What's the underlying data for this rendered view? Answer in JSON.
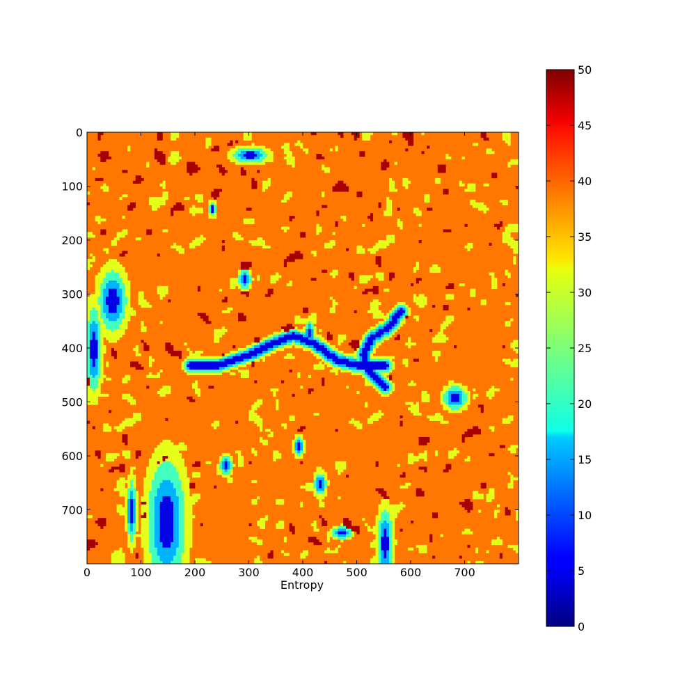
{
  "chart_data": {
    "type": "heatmap",
    "title": "",
    "xlabel": "Entropy",
    "ylabel": "",
    "x_ticks": [
      0,
      100,
      200,
      300,
      400,
      500,
      600,
      700
    ],
    "y_ticks": [
      0,
      100,
      200,
      300,
      400,
      500,
      600,
      700
    ],
    "xlim": [
      0,
      800
    ],
    "ylim": [
      800,
      0
    ],
    "y_inverted": true,
    "grid": false,
    "colormap": "jet",
    "colorbar": {
      "range": [
        0,
        50
      ],
      "ticks": [
        0,
        5,
        10,
        15,
        20,
        25,
        30,
        35,
        40,
        45,
        50
      ]
    },
    "value_distribution": {
      "dominant_value_approx": 40,
      "secondary_value_approx": 30,
      "high_speckle_value_approx": 48,
      "low_feature_value_approx": 5
    }
  }
}
